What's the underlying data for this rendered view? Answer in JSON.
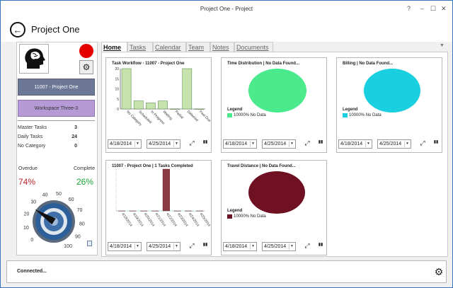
{
  "window": {
    "title": "Project One - Project",
    "help": "?",
    "minimize": "–",
    "maximize": "☐",
    "close": "✕"
  },
  "header": {
    "title": "Project One",
    "back_icon": "←"
  },
  "left": {
    "gear_icon": "⚙",
    "project_button": "11007 - Project One",
    "workspace_button": "Workspace Three-3",
    "stats": [
      {
        "label": "Master Tasks",
        "value": "3"
      },
      {
        "label": "Daily Tasks",
        "value": "24"
      },
      {
        "label": "No Category",
        "value": "0"
      }
    ],
    "overdue_label": "Overdue",
    "complete_label": "Complete",
    "overdue_value": "74%",
    "complete_value": "26%",
    "gauge_ticks": [
      "0",
      "10",
      "20",
      "30",
      "40",
      "50",
      "60",
      "70",
      "80",
      "90",
      "100"
    ],
    "gauge_level": 26
  },
  "tabs": [
    {
      "label": "Home",
      "active": true
    },
    {
      "label": "Tasks"
    },
    {
      "label": "Calendar"
    },
    {
      "label": "Team"
    },
    {
      "label": "Notes"
    },
    {
      "label": "Documents"
    }
  ],
  "tab_dropdown": "▼",
  "cards": {
    "workflow": {
      "title": "Task Workflow - 11007 - Project One",
      "start_date": "4/18/2014",
      "end_date": "4/25/2014",
      "expand_icon": "⤢",
      "chart_icon": "▮▮",
      "chart_data": {
        "type": "bar",
        "categories": [
          "No Category",
          "Scheduled",
          "In Progress",
          "Waiting",
          "Partial",
          "Deferred",
          "Past Due"
        ],
        "values": [
          20,
          4,
          3,
          4,
          0,
          20,
          0
        ],
        "ylim": [
          0,
          20
        ],
        "yticks": [
          "0",
          "5",
          "10",
          "15",
          "20"
        ],
        "color": "#c6e3ad"
      }
    },
    "time": {
      "title": "Time Distribution | No Data Found...",
      "legend_title": "Legend",
      "legend_item": "10000% No Data",
      "color": "#4bea8c",
      "start_date": "4/18/2014",
      "end_date": "4/25/2014",
      "expand_icon": "⤢",
      "chart_icon": "▮▮",
      "chart_data": {
        "type": "pie",
        "categories": [
          "No Data"
        ],
        "values": [
          10000
        ]
      }
    },
    "billing": {
      "title": "Billing | No Data Found...",
      "legend_title": "Legend",
      "legend_item": "10000% No Data",
      "color": "#19cfe0",
      "start_date": "4/18/2014",
      "end_date": "4/25/2014",
      "expand_icon": "⤢",
      "chart_icon": "▮▮",
      "chart_data": {
        "type": "pie",
        "categories": [
          "No Data"
        ],
        "values": [
          10000
        ]
      }
    },
    "completed": {
      "title": "11007 - Project One | 1 Tasks Completed",
      "start_date": "4/18/2014",
      "end_date": "4/25/2014",
      "expand_icon": "⤢",
      "chart_icon": "▮▮",
      "chart_data": {
        "type": "bar",
        "categories": [
          "4/18/2014",
          "4/19/2014",
          "4/20/2014",
          "4/21/2014",
          "4/22/2014",
          "4/23/2014",
          "4/24/2014",
          "4/25/2014"
        ],
        "values": [
          0,
          0,
          0,
          0,
          1,
          0,
          0,
          0
        ],
        "ylim": [
          0,
          1
        ],
        "color": "#8c3a44"
      }
    },
    "travel": {
      "title": "Travel Distance | No Data Found...",
      "legend_title": "Legend",
      "legend_item": "10000% No Data",
      "color": "#6f1122",
      "start_date": "4/18/2014",
      "end_date": "4/25/2014",
      "expand_icon": "⤢",
      "chart_icon": "▮▮",
      "chart_data": {
        "type": "pie",
        "categories": [
          "No Data"
        ],
        "values": [
          10000
        ]
      }
    }
  },
  "status": {
    "text": "Connected...",
    "settings_icon": "⚙"
  }
}
